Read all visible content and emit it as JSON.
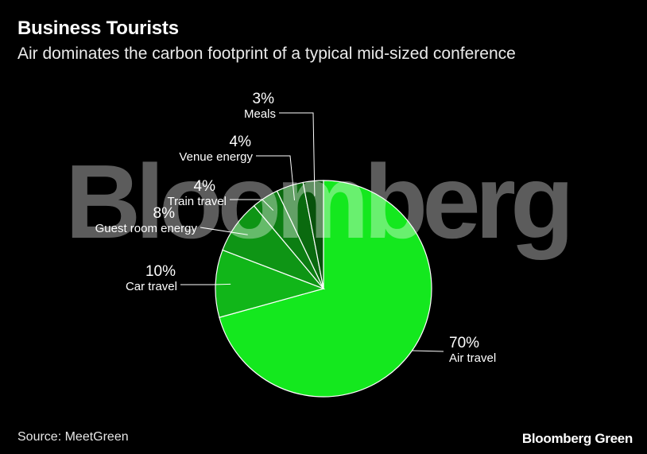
{
  "header": {
    "title": "Business Tourists",
    "subtitle": "Air dominates the carbon footprint of a typical mid-sized conference"
  },
  "watermark": "Bloomberg",
  "footer": {
    "source": "Source: MeetGreen",
    "brand": "Bloomberg Green"
  },
  "chart_data": {
    "type": "pie",
    "title": "Business Tourists",
    "subtitle": "Air dominates the carbon footprint of a typical mid-sized conference",
    "slices": [
      {
        "label": "Air travel",
        "value": 70,
        "value_label": "70%",
        "color": "#14e81e"
      },
      {
        "label": "Car travel",
        "value": 10,
        "value_label": "10%",
        "color": "#11b619"
      },
      {
        "label": "Guest room energy",
        "value": 8,
        "value_label": "8%",
        "color": "#0e9515"
      },
      {
        "label": "Train travel",
        "value": 4,
        "value_label": "4%",
        "color": "#0c7e12"
      },
      {
        "label": "Venue energy",
        "value": 4,
        "value_label": "4%",
        "color": "#0a6a0f"
      },
      {
        "label": "Meals",
        "value": 3,
        "value_label": "3%",
        "color": "#07520b"
      }
    ],
    "direction": "clockwise",
    "start": "top",
    "legend": "none"
  }
}
